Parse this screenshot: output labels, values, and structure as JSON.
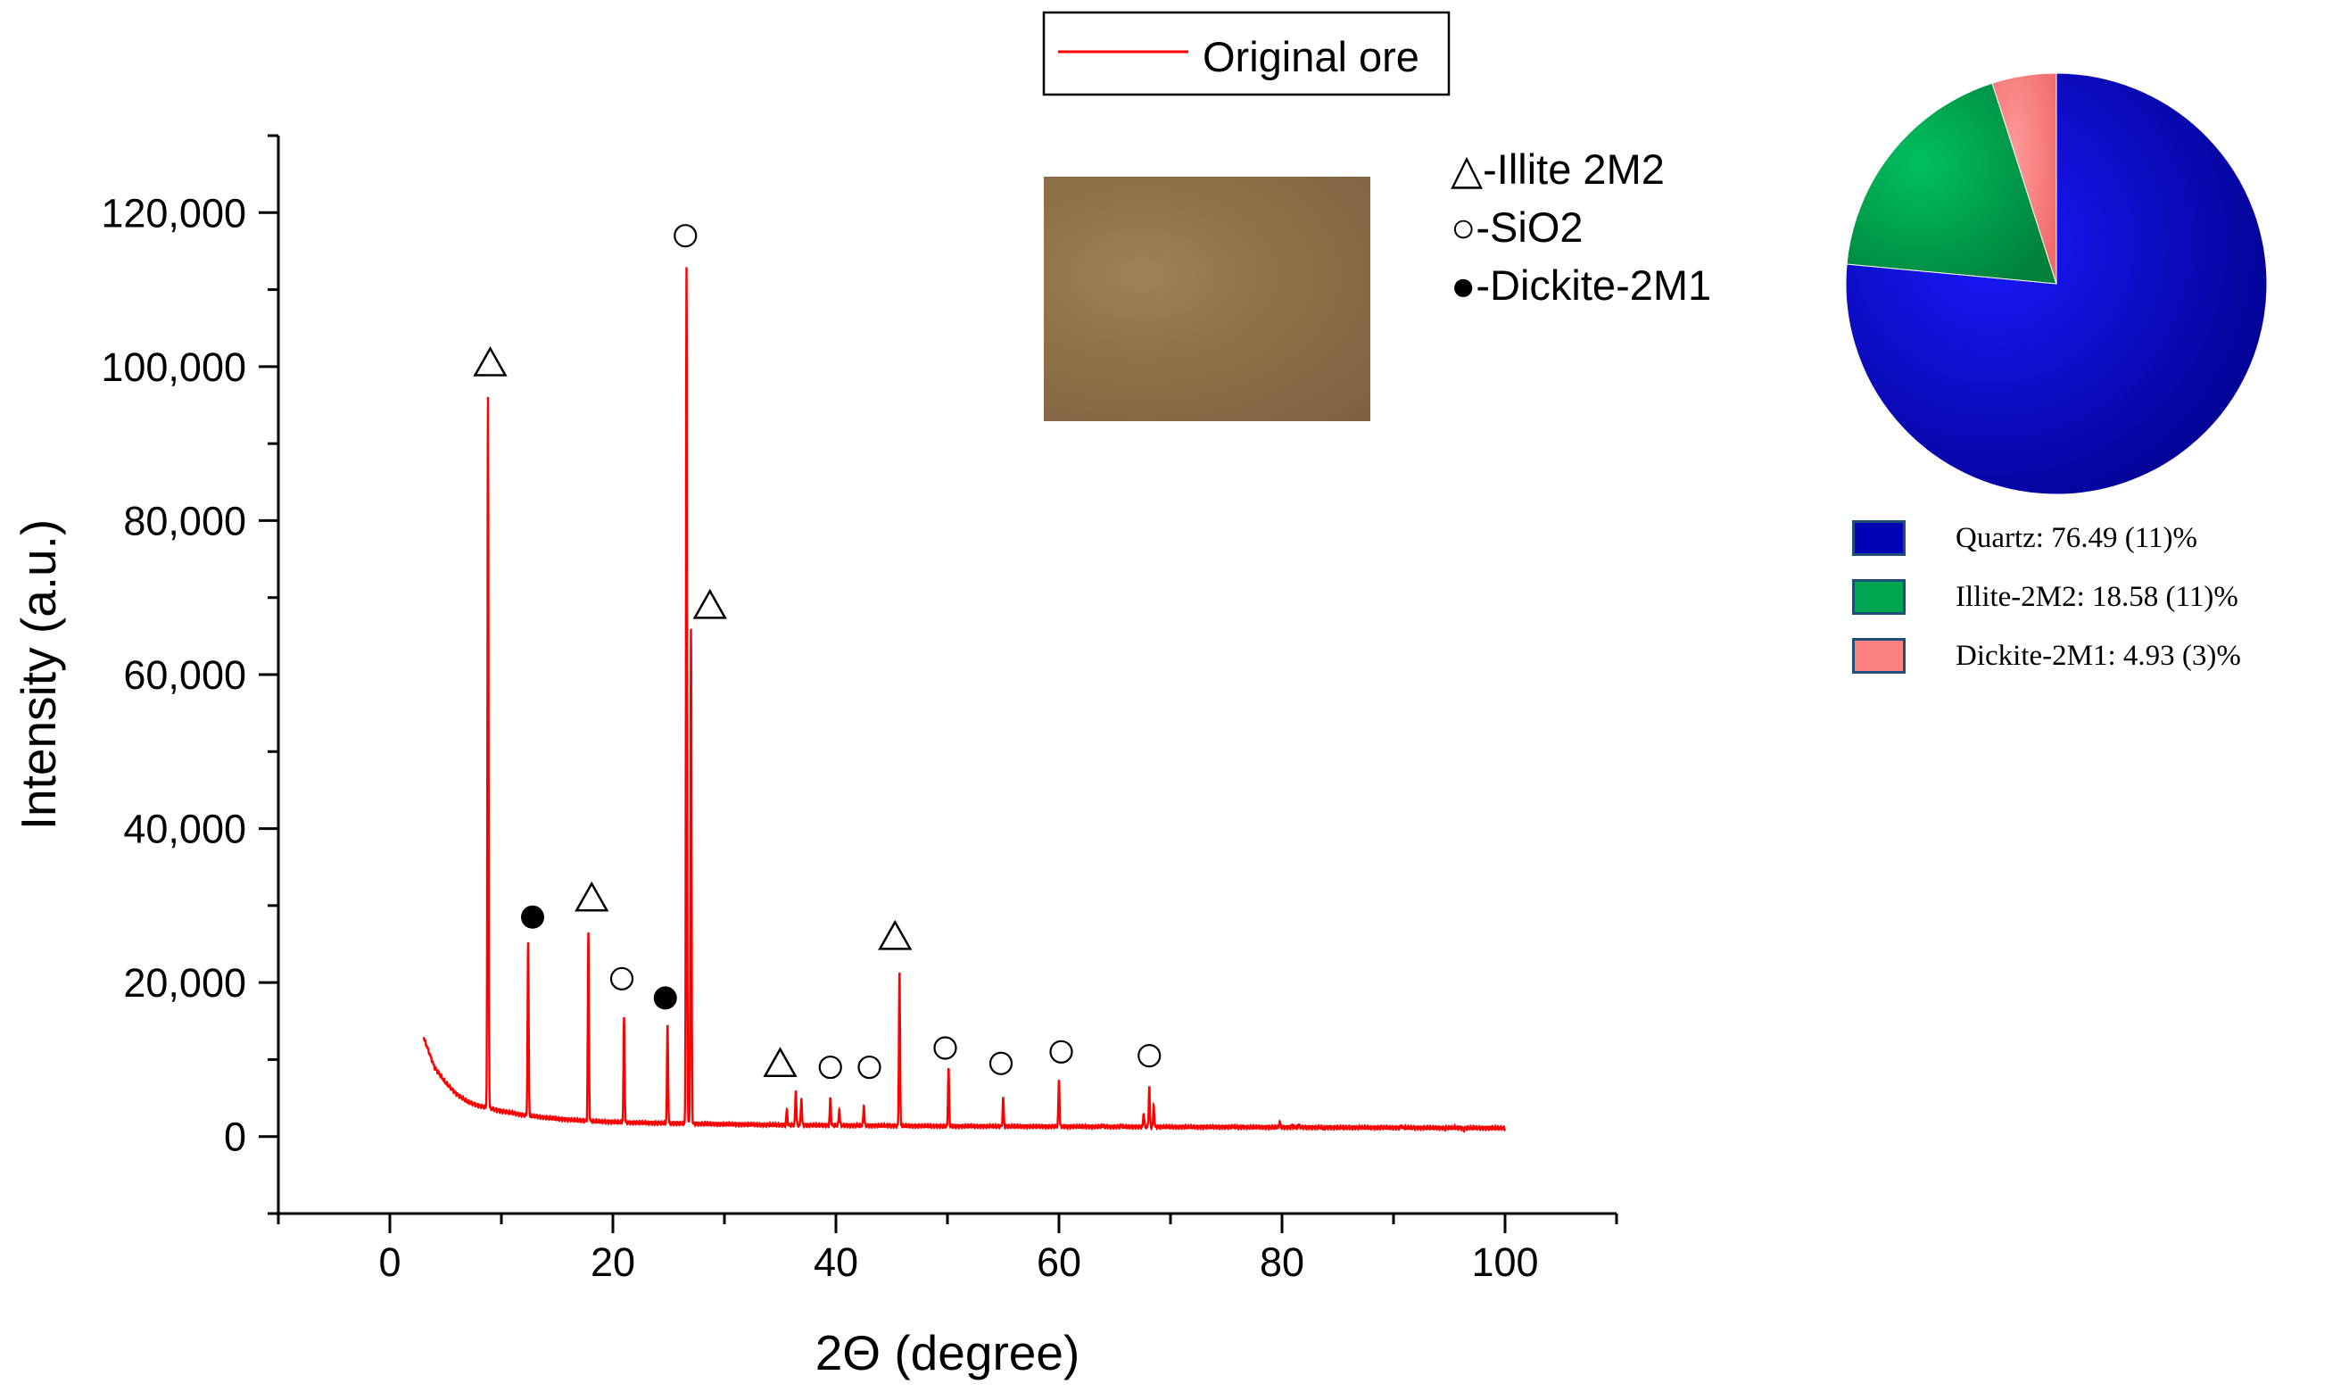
{
  "chart_data": [
    {
      "type": "line",
      "title": "",
      "xlabel": "2Θ (degree)",
      "ylabel": "Intensity (a.u.)",
      "xlim": [
        -10,
        110
      ],
      "ylim": [
        -10000,
        130000
      ],
      "x_ticks": [
        0,
        20,
        40,
        60,
        80,
        100
      ],
      "x_tick_labels": [
        "0",
        "20",
        "40",
        "60",
        "80",
        "100"
      ],
      "y_ticks": [
        0,
        20000,
        40000,
        60000,
        80000,
        100000,
        120000
      ],
      "y_tick_labels": [
        "0",
        "20,000",
        "40,000",
        "60,000",
        "80,000",
        "100,000",
        "120,000"
      ],
      "legend": {
        "position": "top-center",
        "entries": [
          {
            "label": "Original ore",
            "color": "#ff0000"
          }
        ]
      },
      "series": [
        {
          "name": "Original ore",
          "color": "#ff0000",
          "baseline": [
            [
              3,
              13000
            ],
            [
              4,
              9000
            ],
            [
              5,
              7000
            ],
            [
              6,
              5500
            ],
            [
              7,
              4500
            ],
            [
              8,
              4000
            ],
            [
              10,
              3300
            ],
            [
              12,
              2800
            ],
            [
              15,
              2300
            ],
            [
              18,
              2000
            ],
            [
              22,
              1800
            ],
            [
              26,
              1700
            ],
            [
              30,
              1600
            ],
            [
              35,
              1500
            ],
            [
              40,
              1450
            ],
            [
              50,
              1350
            ],
            [
              60,
              1300
            ],
            [
              70,
              1250
            ],
            [
              80,
              1200
            ],
            [
              90,
              1150
            ],
            [
              100,
              1100
            ]
          ],
          "peaks": [
            [
              8.8,
              96000
            ],
            [
              12.4,
              25000
            ],
            [
              17.8,
              26500
            ],
            [
              21.0,
              15500
            ],
            [
              24.9,
              14500
            ],
            [
              26.6,
              113000
            ],
            [
              27.0,
              66000
            ],
            [
              35.6,
              3500
            ],
            [
              36.4,
              6000
            ],
            [
              36.9,
              5000
            ],
            [
              39.5,
              5000
            ],
            [
              40.3,
              3500
            ],
            [
              42.5,
              4000
            ],
            [
              45.7,
              21500
            ],
            [
              50.1,
              9000
            ],
            [
              55.0,
              5000
            ],
            [
              60.0,
              7500
            ],
            [
              63.9,
              1500
            ],
            [
              65.6,
              1500
            ],
            [
              67.6,
              3000
            ],
            [
              68.1,
              6500
            ],
            [
              68.5,
              4000
            ],
            [
              73.4,
              1200
            ],
            [
              75.6,
              1400
            ],
            [
              76.5,
              1300
            ],
            [
              79.8,
              2000
            ],
            [
              80.9,
              1500
            ],
            [
              81.5,
              1600
            ],
            [
              83.7,
              1000
            ],
            [
              90.7,
              1400
            ],
            [
              94.6,
              1000
            ],
            [
              95.5,
              1200
            ],
            [
              96.3,
              900
            ]
          ]
        }
      ],
      "markers": [
        {
          "symbol": "triangle",
          "x": 9.0,
          "y": 100500
        },
        {
          "symbol": "filled-circle",
          "x": 12.8,
          "y": 28500
        },
        {
          "symbol": "triangle",
          "x": 18.1,
          "y": 31000
        },
        {
          "symbol": "open-circle",
          "x": 20.8,
          "y": 20500
        },
        {
          "symbol": "filled-circle",
          "x": 24.7,
          "y": 18000
        },
        {
          "symbol": "open-circle",
          "x": 26.5,
          "y": 117000
        },
        {
          "symbol": "triangle",
          "x": 28.7,
          "y": 69000
        },
        {
          "symbol": "triangle",
          "x": 35.0,
          "y": 9500
        },
        {
          "symbol": "open-circle",
          "x": 39.5,
          "y": 9000
        },
        {
          "symbol": "open-circle",
          "x": 43.0,
          "y": 9000
        },
        {
          "symbol": "triangle",
          "x": 45.3,
          "y": 26000
        },
        {
          "symbol": "open-circle",
          "x": 49.8,
          "y": 11500
        },
        {
          "symbol": "open-circle",
          "x": 54.8,
          "y": 9500
        },
        {
          "symbol": "open-circle",
          "x": 60.2,
          "y": 11000
        },
        {
          "symbol": "open-circle",
          "x": 68.1,
          "y": 10500
        }
      ],
      "annotations": [
        {
          "symbol": "triangle",
          "text": "△-Illite 2M2"
        },
        {
          "symbol": "open-circle",
          "text": "○-SiO2"
        },
        {
          "symbol": "filled-circle",
          "text": "●-Dickite-2M1"
        }
      ]
    },
    {
      "type": "pie",
      "title": "",
      "slices": [
        {
          "label": "Quartz: 76.49 (11)%",
          "value": 76.49,
          "color": "#0000cd"
        },
        {
          "label": "Illite-2M2: 18.58 (11)%",
          "value": 18.58,
          "color": "#00a550"
        },
        {
          "label": "Dickite-2M1: 4.93 (3)%",
          "value": 4.93,
          "color": "#fb8080"
        }
      ],
      "legend": {
        "position": "bottom"
      }
    }
  ]
}
